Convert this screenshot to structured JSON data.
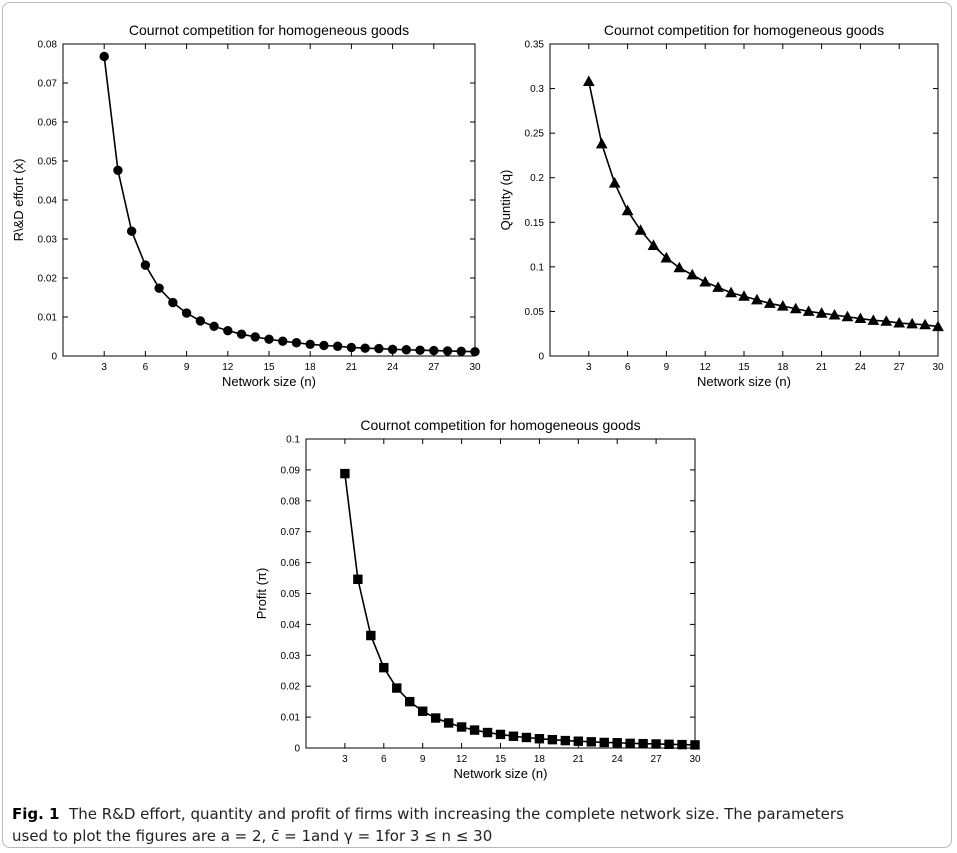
{
  "chart_data": [
    {
      "id": "chart1",
      "type": "line",
      "title": "Cournot  competition for homogeneous goods",
      "xlabel": "Network size (n)",
      "ylabel": "R\\&D effort (x)",
      "xlim": [
        0,
        30
      ],
      "ylim": [
        0,
        0.08
      ],
      "xticks": [
        3,
        6,
        9,
        12,
        15,
        18,
        21,
        24,
        27,
        30
      ],
      "yticks": [
        0,
        0.01,
        0.02,
        0.03,
        0.04,
        0.05,
        0.06,
        0.07,
        0.08
      ],
      "ytick_labels": [
        "0",
        "0.01",
        "0.02",
        "0.03",
        "0.04",
        "0.05",
        "0.06",
        "0.07",
        "0.08"
      ],
      "marker": "circle",
      "grid": false,
      "series": [
        {
          "x": [
            3,
            4,
            5,
            6,
            7,
            8,
            9,
            10,
            11,
            12,
            13,
            14,
            15,
            16,
            17,
            18,
            19,
            20,
            21,
            22,
            23,
            24,
            25,
            26,
            27,
            28,
            29,
            30
          ],
          "values": [
            0.0768,
            0.0476,
            0.032,
            0.0233,
            0.0174,
            0.0137,
            0.011,
            0.009,
            0.0076,
            0.0065,
            0.0056,
            0.0049,
            0.0043,
            0.0038,
            0.0034,
            0.003,
            0.0027,
            0.0025,
            0.0022,
            0.002,
            0.0019,
            0.0017,
            0.0016,
            0.0015,
            0.0014,
            0.0013,
            0.0012,
            0.0011
          ]
        }
      ]
    },
    {
      "id": "chart2",
      "type": "line",
      "title": "Cournot  competition for homogeneous goods",
      "xlabel": "Network size (n)",
      "ylabel": "Quntity (q)",
      "xlim": [
        0,
        30
      ],
      "ylim": [
        0,
        0.35
      ],
      "xticks": [
        3,
        6,
        9,
        12,
        15,
        18,
        21,
        24,
        27,
        30
      ],
      "yticks": [
        0,
        0.05,
        0.1,
        0.15,
        0.2,
        0.25,
        0.3,
        0.35
      ],
      "ytick_labels": [
        "0",
        "0.05",
        "0.1",
        "0.15",
        "0.2",
        "0.25",
        "0.3",
        "0.35"
      ],
      "marker": "triangle",
      "grid": false,
      "series": [
        {
          "x": [
            3,
            4,
            5,
            6,
            7,
            8,
            9,
            10,
            11,
            12,
            13,
            14,
            15,
            16,
            17,
            18,
            19,
            20,
            21,
            22,
            23,
            24,
            25,
            26,
            27,
            28,
            29,
            30
          ],
          "values": [
            0.308,
            0.238,
            0.194,
            0.163,
            0.141,
            0.124,
            0.11,
            0.099,
            0.091,
            0.083,
            0.077,
            0.071,
            0.067,
            0.063,
            0.059,
            0.056,
            0.053,
            0.05,
            0.048,
            0.046,
            0.044,
            0.042,
            0.04,
            0.039,
            0.037,
            0.036,
            0.035,
            0.033
          ]
        }
      ]
    },
    {
      "id": "chart3",
      "type": "line",
      "title": "Cournot  competition for homogeneous goods",
      "xlabel": "Network size (n)",
      "ylabel": "Profit (π)",
      "xlim": [
        0,
        30
      ],
      "ylim": [
        0,
        0.1
      ],
      "xticks": [
        3,
        6,
        9,
        12,
        15,
        18,
        21,
        24,
        27,
        30
      ],
      "yticks": [
        0,
        0.01,
        0.02,
        0.03,
        0.04,
        0.05,
        0.06,
        0.07,
        0.08,
        0.09,
        0.1
      ],
      "ytick_labels": [
        "0",
        "0.01",
        "0.02",
        "0.03",
        "0.04",
        "0.05",
        "0.06",
        "0.07",
        "0.08",
        "0.09",
        "0.1"
      ],
      "marker": "square",
      "grid": false,
      "series": [
        {
          "x": [
            3,
            4,
            5,
            6,
            7,
            8,
            9,
            10,
            11,
            12,
            13,
            14,
            15,
            16,
            17,
            18,
            19,
            20,
            21,
            22,
            23,
            24,
            25,
            26,
            27,
            28,
            29,
            30
          ],
          "values": [
            0.0888,
            0.0546,
            0.0364,
            0.026,
            0.0194,
            0.015,
            0.0119,
            0.0097,
            0.0081,
            0.0068,
            0.0058,
            0.005,
            0.0044,
            0.0038,
            0.0034,
            0.003,
            0.0027,
            0.0024,
            0.0022,
            0.002,
            0.0018,
            0.0017,
            0.0015,
            0.0014,
            0.0013,
            0.0012,
            0.0011,
            0.001
          ]
        }
      ]
    }
  ],
  "caption": {
    "label": "Fig. 1",
    "text_line1": "The R&D effort, quantity and profit of firms with increasing the complete network size. The parameters",
    "text_line2": "used to plot the figures are a = 2, c̄ = 1and γ = 1for 3 ≤ n ≤ 30"
  }
}
